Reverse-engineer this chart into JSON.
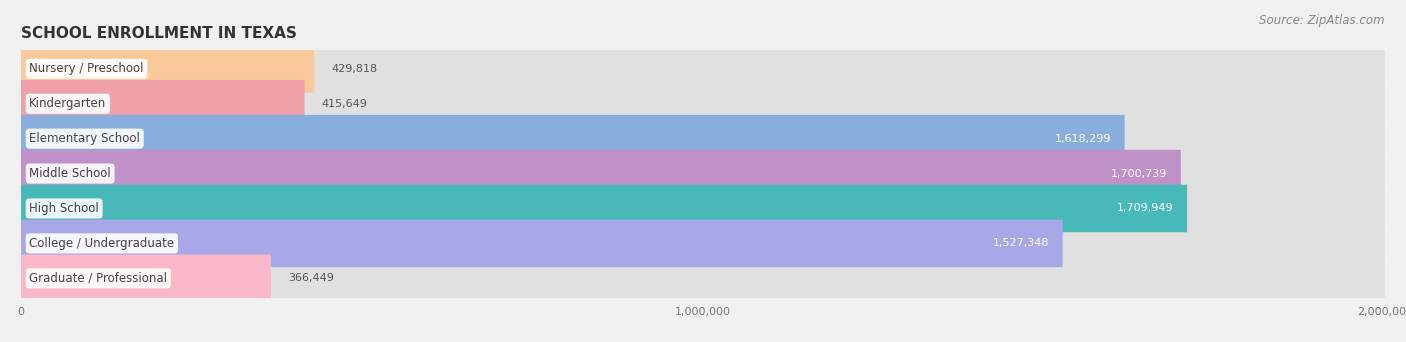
{
  "title": "SCHOOL ENROLLMENT IN TEXAS",
  "source": "Source: ZipAtlas.com",
  "categories": [
    "Nursery / Preschool",
    "Kindergarten",
    "Elementary School",
    "Middle School",
    "High School",
    "College / Undergraduate",
    "Graduate / Professional"
  ],
  "values": [
    429818,
    415649,
    1618299,
    1700739,
    1709949,
    1527348,
    366449
  ],
  "bar_colors": [
    "#f9c89b",
    "#f0a0a8",
    "#88aede",
    "#c090c8",
    "#48b8b8",
    "#a8a8e8",
    "#f8b8c8"
  ],
  "background_color": "#f0f0f0",
  "bar_background_color": "#e0e0e0",
  "xlim": [
    0,
    2000000
  ],
  "title_fontsize": 11,
  "label_fontsize": 8.5,
  "value_fontsize": 8,
  "source_fontsize": 8.5
}
